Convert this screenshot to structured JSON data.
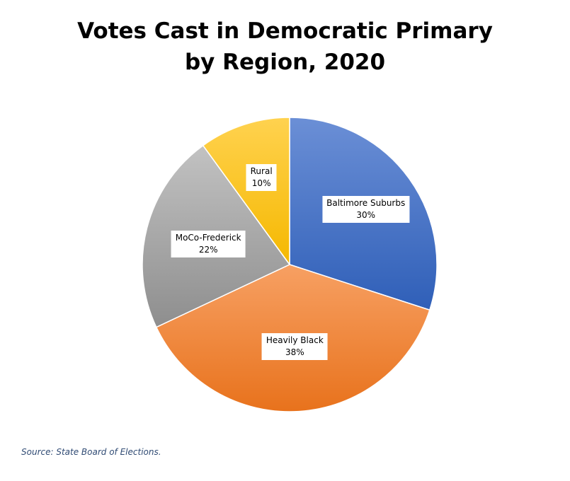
{
  "chart_data": {
    "type": "pie",
    "title_lines": [
      "Votes Cast in Democratic Primary",
      "by Region, 2020"
    ],
    "start_angle_deg": 0,
    "direction": "clockwise",
    "slices": [
      {
        "name": "Baltimore Suburbs",
        "value": 30,
        "label": "30%",
        "color_light": "#6b8fd6",
        "color_dark": "#2f5fb8"
      },
      {
        "name": "Heavily Black",
        "value": 38,
        "label": "38%",
        "color_light": "#f7a063",
        "color_dark": "#e8721c"
      },
      {
        "name": "MoCo-Frederick",
        "value": 22,
        "label": "22%",
        "color_light": "#c2c2c2",
        "color_dark": "#8e8e8e"
      },
      {
        "name": "Rural",
        "value": 10,
        "label": "10%",
        "color_light": "#ffd24f",
        "color_dark": "#f5b800"
      }
    ]
  },
  "source": "Source: State Board of Elections."
}
